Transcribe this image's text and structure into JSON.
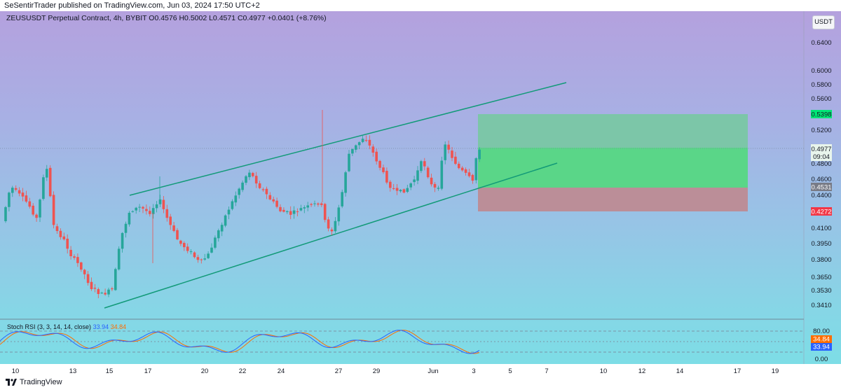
{
  "header": {
    "published": "SeSentirTrader published on TradingView.com, Jun 03, 2024 17:50 UTC+2"
  },
  "symbol": {
    "info": "ZEUSUSDT Perpetual Contract, 4h, BYBIT  O0.4576  H0.5002  L0.4571  C0.4977  +0.0401 (+8.76%)",
    "currency": "USDT"
  },
  "price_axis": {
    "ticks": [
      "0.6400",
      "0.6000",
      "0.5800",
      "0.5600",
      "0.5200",
      "0.4800",
      "0.4600",
      "0.4400",
      "0.4100",
      "0.3950",
      "0.3800",
      "0.3650",
      "0.3530",
      "0.3410"
    ]
  },
  "price_tags": {
    "target": "0.5398",
    "current": "0.4977",
    "countdown": "09:04",
    "entry": "0.4531",
    "stop": "0.4272"
  },
  "time_axis": {
    "labels": [
      "10",
      "13",
      "15",
      "17",
      "20",
      "22",
      "24",
      "27",
      "29",
      "Jun",
      "3",
      "5",
      "7",
      "10",
      "12",
      "14",
      "17",
      "19"
    ]
  },
  "stoch_rsi": {
    "label": "Stoch RSI (3, 3, 14, 14, close)",
    "k_value": "33.94",
    "d_value": "34.84",
    "levels": [
      "80.00",
      "0.00"
    ]
  },
  "footer": {
    "brand": "TradingView"
  },
  "colors": {
    "up": "#26a69a",
    "down": "#ef5350",
    "channel": "#159a7c",
    "target_zone": "#5bd68a",
    "stop_zone": "#c68a8e",
    "k_line": "#2962ff",
    "d_line": "#ff6d00",
    "target_tag": "#00e676",
    "stop_tag": "#f23645"
  }
}
